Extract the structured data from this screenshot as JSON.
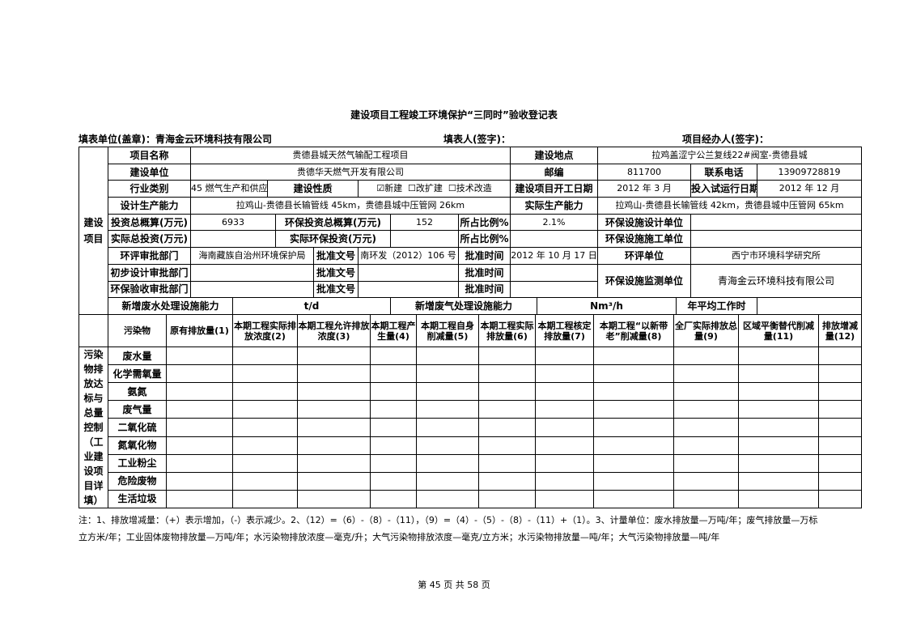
{
  "title": "建设项目工程竣工环境保护“三同时”验收登记表",
  "header": {
    "unit": "填表单位(盖章)：青海金云环境科技有限公司",
    "filler": "填表人(签字)：",
    "handler": "项目经办人(签字)："
  },
  "project": {
    "section_label": "建设项目",
    "name_label": "项目名称",
    "name": "贵德县城天然气输配工程项目",
    "location_label": "建设地点",
    "location": "拉鸡盖涩宁公兰复线22#阀室-贵德县城",
    "builder_label": "建设单位",
    "builder": "贵德华天燃气开发有限公司",
    "postcode_label": "邮编",
    "postcode": "811700",
    "phone_label": "联系电话",
    "phone": "13909728819",
    "industry_label": "行业类别",
    "industry": "45 燃气生产和供应",
    "nature_label": "建设性质",
    "nature": "☑新建  ☐改扩建  ☐技术改造",
    "start_label": "建设项目开工日期",
    "start": "2012 年 3 月",
    "trial_label": "投入试运行日期",
    "trial": "2012 年 12 月",
    "design_cap_label": "设计生产能力",
    "design_cap": "拉鸡山-贵德县长输管线 45km，贵德县城中压管网 26km",
    "actual_cap_label": "实际生产能力",
    "actual_cap": "拉鸡山-贵德县长输管线 42km，贵德县城中压管网 65km",
    "invest_label": "投资总概算(万元)",
    "invest": "6933",
    "env_invest_label": "环保投资总概算(万元)",
    "env_invest": "152",
    "ratio_label": "所占比例%",
    "ratio": "2.1%",
    "env_design_label": "环保设施设计单位",
    "env_design": "",
    "actual_invest_label": "实际总投资(万元)",
    "actual_invest": "",
    "actual_env_invest_label": "实际环保投资(万元)",
    "actual_env_invest": "",
    "ratio2_label": "所占比例%",
    "ratio2": "",
    "env_build_label": "环保设施施工单位",
    "env_build": "",
    "eia_dept_label": "环评审批部门",
    "eia_dept": "海南藏族自治州环境保护局",
    "doc_label": "批准文号",
    "eia_doc": "南环发（2012）106 号",
    "time_label": "批准时间",
    "eia_time": "2012 年 10 月 17 日",
    "eia_unit_label": "环评单位",
    "eia_unit": "西宁市环境科学研究所",
    "prelim_dept_label": "初步设计审批部门",
    "accept_dept_label": "环保验收审批部门",
    "monitor_label": "环保设施监测单位",
    "monitor": "青海金云环境科技有限公司",
    "water_cap_label": "新增废水处理设施能力",
    "water_unit": "t/d",
    "gas_cap_label": "新增废气处理设施能力",
    "gas_unit": "Nm³/h",
    "hours_label": "年平均工作时",
    "hours": ""
  },
  "pollution": {
    "side_label": "污染物排放达标与总量控制（工业建设项目详填）",
    "columns": [
      "污染物",
      "原有排放量(1)",
      "本期工程实际排放浓度(2)",
      "本期工程允许排放浓度(3)",
      "本期工程产生量(4)",
      "本期工程自身削减量(5)",
      "本期工程实际排放量(6)",
      "本期工程核定排放量(7)",
      "本期工程“以新带老”削减量(8)",
      "全厂实际排放总量(9)",
      "区域平衡替代削减量(11)",
      "排放增减量(12)"
    ],
    "rows": [
      "废水量",
      "化学需氧量",
      "氨氮",
      "废气量",
      "二氧化硫",
      "氮氧化物",
      "工业粉尘",
      "危险废物",
      "生活垃圾"
    ]
  },
  "notes": [
    "注：1、排放增减量：（+）表示增加，（-）表示减少。2、（12）=（6）-（8）-（11），（9）=（4）-（5）-（8）-（11）+（1）。3、计量单位：废水排放量—万吨/年；废气排放量—万标",
    "立方米/年；工业固体废物排放量—万吨/年；水污染物排放浓度—毫克/升；大气污染物排放浓度—毫克/立方米；水污染物排放量—吨/年；大气污染物排放量—吨/年"
  ],
  "footer": "第 45 页 共 58 页"
}
